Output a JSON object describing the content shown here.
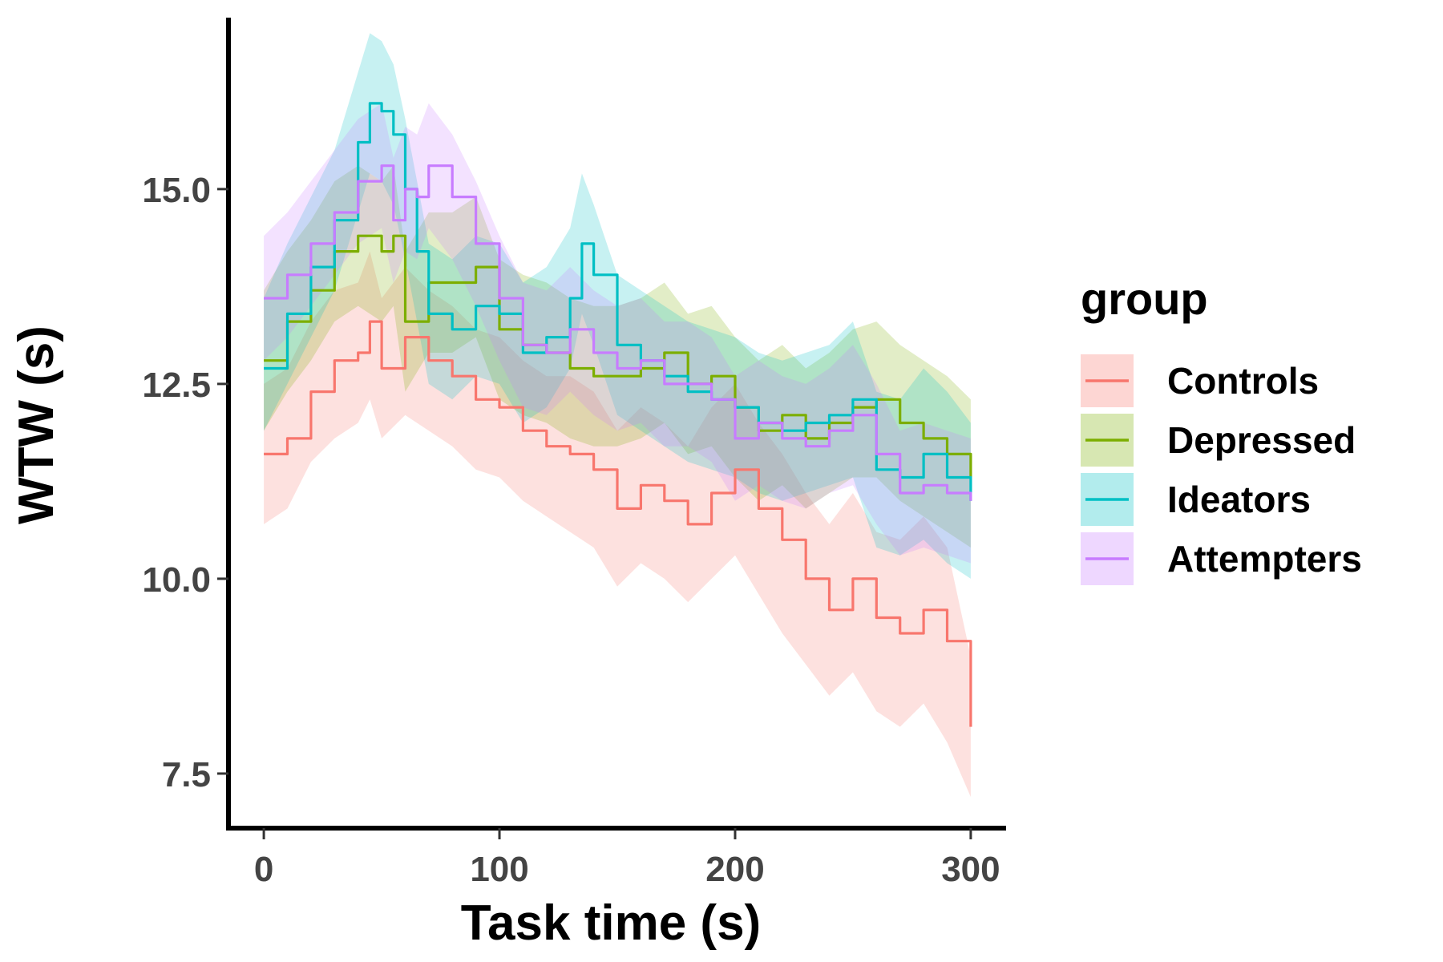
{
  "chart_data": {
    "type": "line",
    "title": "",
    "xlabel": "Task time (s)",
    "ylabel": "WTW (s)",
    "xlim": [
      -15,
      315
    ],
    "ylim": [
      6.8,
      17.2
    ],
    "x_ticks": [
      0,
      100,
      200,
      300
    ],
    "x_tick_labels": [
      "0",
      "100",
      "200",
      "300"
    ],
    "y_ticks": [
      7.5,
      10.0,
      12.5,
      15.0
    ],
    "y_tick_labels": [
      "7.5",
      "10.0",
      "12.5",
      "15.0"
    ],
    "grid": false,
    "legend": {
      "title": "group",
      "position": "right"
    },
    "series": [
      {
        "name": "Controls",
        "color": "#F8766D",
        "x": [
          0,
          10,
          20,
          30,
          40,
          45,
          50,
          60,
          70,
          80,
          90,
          100,
          110,
          120,
          130,
          140,
          150,
          160,
          170,
          180,
          190,
          200,
          210,
          220,
          230,
          240,
          250,
          260,
          270,
          280,
          290,
          300
        ],
        "values": [
          11.6,
          11.8,
          12.4,
          12.8,
          12.9,
          13.3,
          12.7,
          13.1,
          12.8,
          12.6,
          12.3,
          12.2,
          11.9,
          11.7,
          11.6,
          11.4,
          10.9,
          11.2,
          11.0,
          10.7,
          11.1,
          11.4,
          10.9,
          10.5,
          10.0,
          9.6,
          10.0,
          9.5,
          9.3,
          9.6,
          9.2,
          8.1
        ],
        "lower": [
          10.7,
          10.9,
          11.5,
          11.8,
          12.0,
          12.3,
          11.8,
          12.1,
          11.9,
          11.7,
          11.4,
          11.3,
          11.0,
          10.8,
          10.6,
          10.4,
          9.9,
          10.2,
          10.0,
          9.7,
          10.0,
          10.3,
          9.8,
          9.3,
          8.9,
          8.5,
          8.8,
          8.3,
          8.1,
          8.4,
          7.9,
          7.2
        ],
        "upper": [
          12.5,
          12.7,
          13.3,
          13.7,
          13.8,
          14.2,
          13.6,
          14.0,
          13.7,
          13.5,
          13.2,
          13.1,
          12.8,
          12.6,
          12.6,
          12.4,
          11.9,
          12.2,
          12.0,
          11.7,
          12.2,
          12.5,
          12.0,
          11.6,
          11.1,
          10.7,
          11.1,
          10.6,
          10.5,
          10.8,
          10.4,
          9.0
        ]
      },
      {
        "name": "Depressed",
        "color": "#7CAE00",
        "x": [
          0,
          10,
          20,
          30,
          40,
          50,
          55,
          60,
          70,
          80,
          90,
          100,
          110,
          120,
          130,
          140,
          150,
          160,
          170,
          180,
          190,
          200,
          210,
          220,
          230,
          240,
          250,
          260,
          270,
          280,
          290,
          300
        ],
        "values": [
          12.8,
          13.3,
          13.7,
          14.2,
          14.4,
          14.2,
          14.4,
          13.3,
          13.8,
          13.8,
          14.0,
          13.2,
          13.0,
          12.9,
          12.7,
          12.6,
          12.6,
          12.7,
          12.9,
          12.5,
          12.6,
          12.2,
          11.9,
          12.1,
          11.8,
          12.0,
          12.2,
          12.3,
          12.0,
          11.8,
          11.6,
          11.3
        ],
        "lower": [
          11.9,
          12.4,
          12.8,
          13.3,
          13.5,
          13.3,
          13.5,
          12.4,
          12.9,
          12.9,
          13.1,
          12.3,
          12.1,
          12.0,
          11.8,
          11.7,
          11.7,
          11.8,
          12.0,
          11.6,
          11.7,
          11.3,
          11.0,
          11.2,
          10.9,
          11.1,
          11.3,
          11.3,
          11.0,
          10.8,
          10.6,
          10.4
        ],
        "upper": [
          13.7,
          14.2,
          14.6,
          15.1,
          15.3,
          15.1,
          15.3,
          14.2,
          14.7,
          14.7,
          14.9,
          14.1,
          13.9,
          13.8,
          13.6,
          13.5,
          13.5,
          13.6,
          13.8,
          13.4,
          13.5,
          13.1,
          12.8,
          13.0,
          12.7,
          12.9,
          13.2,
          13.3,
          13.0,
          12.8,
          12.6,
          12.3
        ]
      },
      {
        "name": "Ideators",
        "color": "#00BFC4",
        "x": [
          0,
          10,
          20,
          30,
          40,
          45,
          50,
          55,
          60,
          65,
          70,
          80,
          90,
          100,
          110,
          120,
          130,
          135,
          140,
          150,
          160,
          170,
          180,
          190,
          200,
          210,
          220,
          230,
          240,
          250,
          260,
          270,
          280,
          290,
          300
        ],
        "values": [
          12.7,
          13.4,
          14.0,
          14.6,
          15.6,
          16.1,
          16.0,
          15.7,
          15.0,
          14.2,
          13.4,
          13.2,
          13.5,
          13.4,
          12.9,
          13.1,
          13.6,
          14.3,
          13.9,
          13.0,
          12.8,
          12.6,
          12.4,
          12.3,
          12.2,
          12.0,
          11.9,
          12.0,
          12.1,
          12.3,
          11.4,
          11.3,
          11.6,
          11.3,
          11.0
        ],
        "lower": [
          11.9,
          12.5,
          13.1,
          13.7,
          14.7,
          15.2,
          15.1,
          14.8,
          14.1,
          13.3,
          12.5,
          12.3,
          12.6,
          12.5,
          12.0,
          12.2,
          12.7,
          13.4,
          13.0,
          12.1,
          11.9,
          11.7,
          11.5,
          11.4,
          11.3,
          11.1,
          11.0,
          11.1,
          11.2,
          11.3,
          10.4,
          10.3,
          10.5,
          10.2,
          10.0
        ],
        "upper": [
          13.6,
          14.3,
          14.9,
          15.5,
          16.5,
          17.0,
          16.9,
          16.6,
          15.9,
          15.1,
          14.3,
          14.1,
          14.4,
          14.3,
          13.8,
          14.0,
          14.5,
          15.2,
          14.8,
          13.9,
          13.7,
          13.5,
          13.3,
          13.2,
          13.1,
          12.9,
          12.8,
          12.9,
          13.0,
          13.3,
          12.4,
          12.3,
          12.7,
          12.4,
          12.0
        ]
      },
      {
        "name": "Attempters",
        "color": "#C77CFF",
        "x": [
          0,
          10,
          20,
          30,
          40,
          50,
          55,
          60,
          65,
          70,
          80,
          90,
          100,
          110,
          120,
          130,
          140,
          150,
          160,
          170,
          180,
          190,
          200,
          210,
          220,
          230,
          240,
          250,
          260,
          270,
          280,
          290,
          300
        ],
        "values": [
          13.6,
          13.9,
          14.3,
          14.7,
          15.1,
          15.3,
          14.6,
          15.0,
          14.9,
          15.3,
          14.9,
          14.3,
          13.6,
          13.0,
          12.9,
          13.2,
          12.9,
          12.7,
          12.8,
          12.5,
          12.5,
          12.3,
          11.8,
          12.0,
          11.8,
          11.7,
          11.9,
          12.1,
          11.6,
          11.1,
          11.2,
          11.1,
          11.0
        ],
        "lower": [
          12.8,
          13.1,
          13.5,
          13.9,
          14.3,
          14.5,
          13.8,
          14.2,
          14.1,
          14.5,
          14.1,
          13.5,
          12.8,
          12.2,
          12.1,
          12.4,
          12.1,
          11.9,
          12.0,
          11.7,
          11.7,
          11.5,
          11.0,
          11.2,
          11.0,
          10.9,
          11.1,
          11.2,
          10.7,
          10.3,
          10.4,
          10.3,
          10.2
        ],
        "upper": [
          14.4,
          14.7,
          15.1,
          15.5,
          15.9,
          16.1,
          15.4,
          15.8,
          15.7,
          16.1,
          15.7,
          15.1,
          14.4,
          13.8,
          13.7,
          14.0,
          13.7,
          13.5,
          13.6,
          13.3,
          13.3,
          13.1,
          12.6,
          12.8,
          12.6,
          12.5,
          12.7,
          13.0,
          12.5,
          11.9,
          12.0,
          11.9,
          11.8
        ]
      }
    ]
  }
}
